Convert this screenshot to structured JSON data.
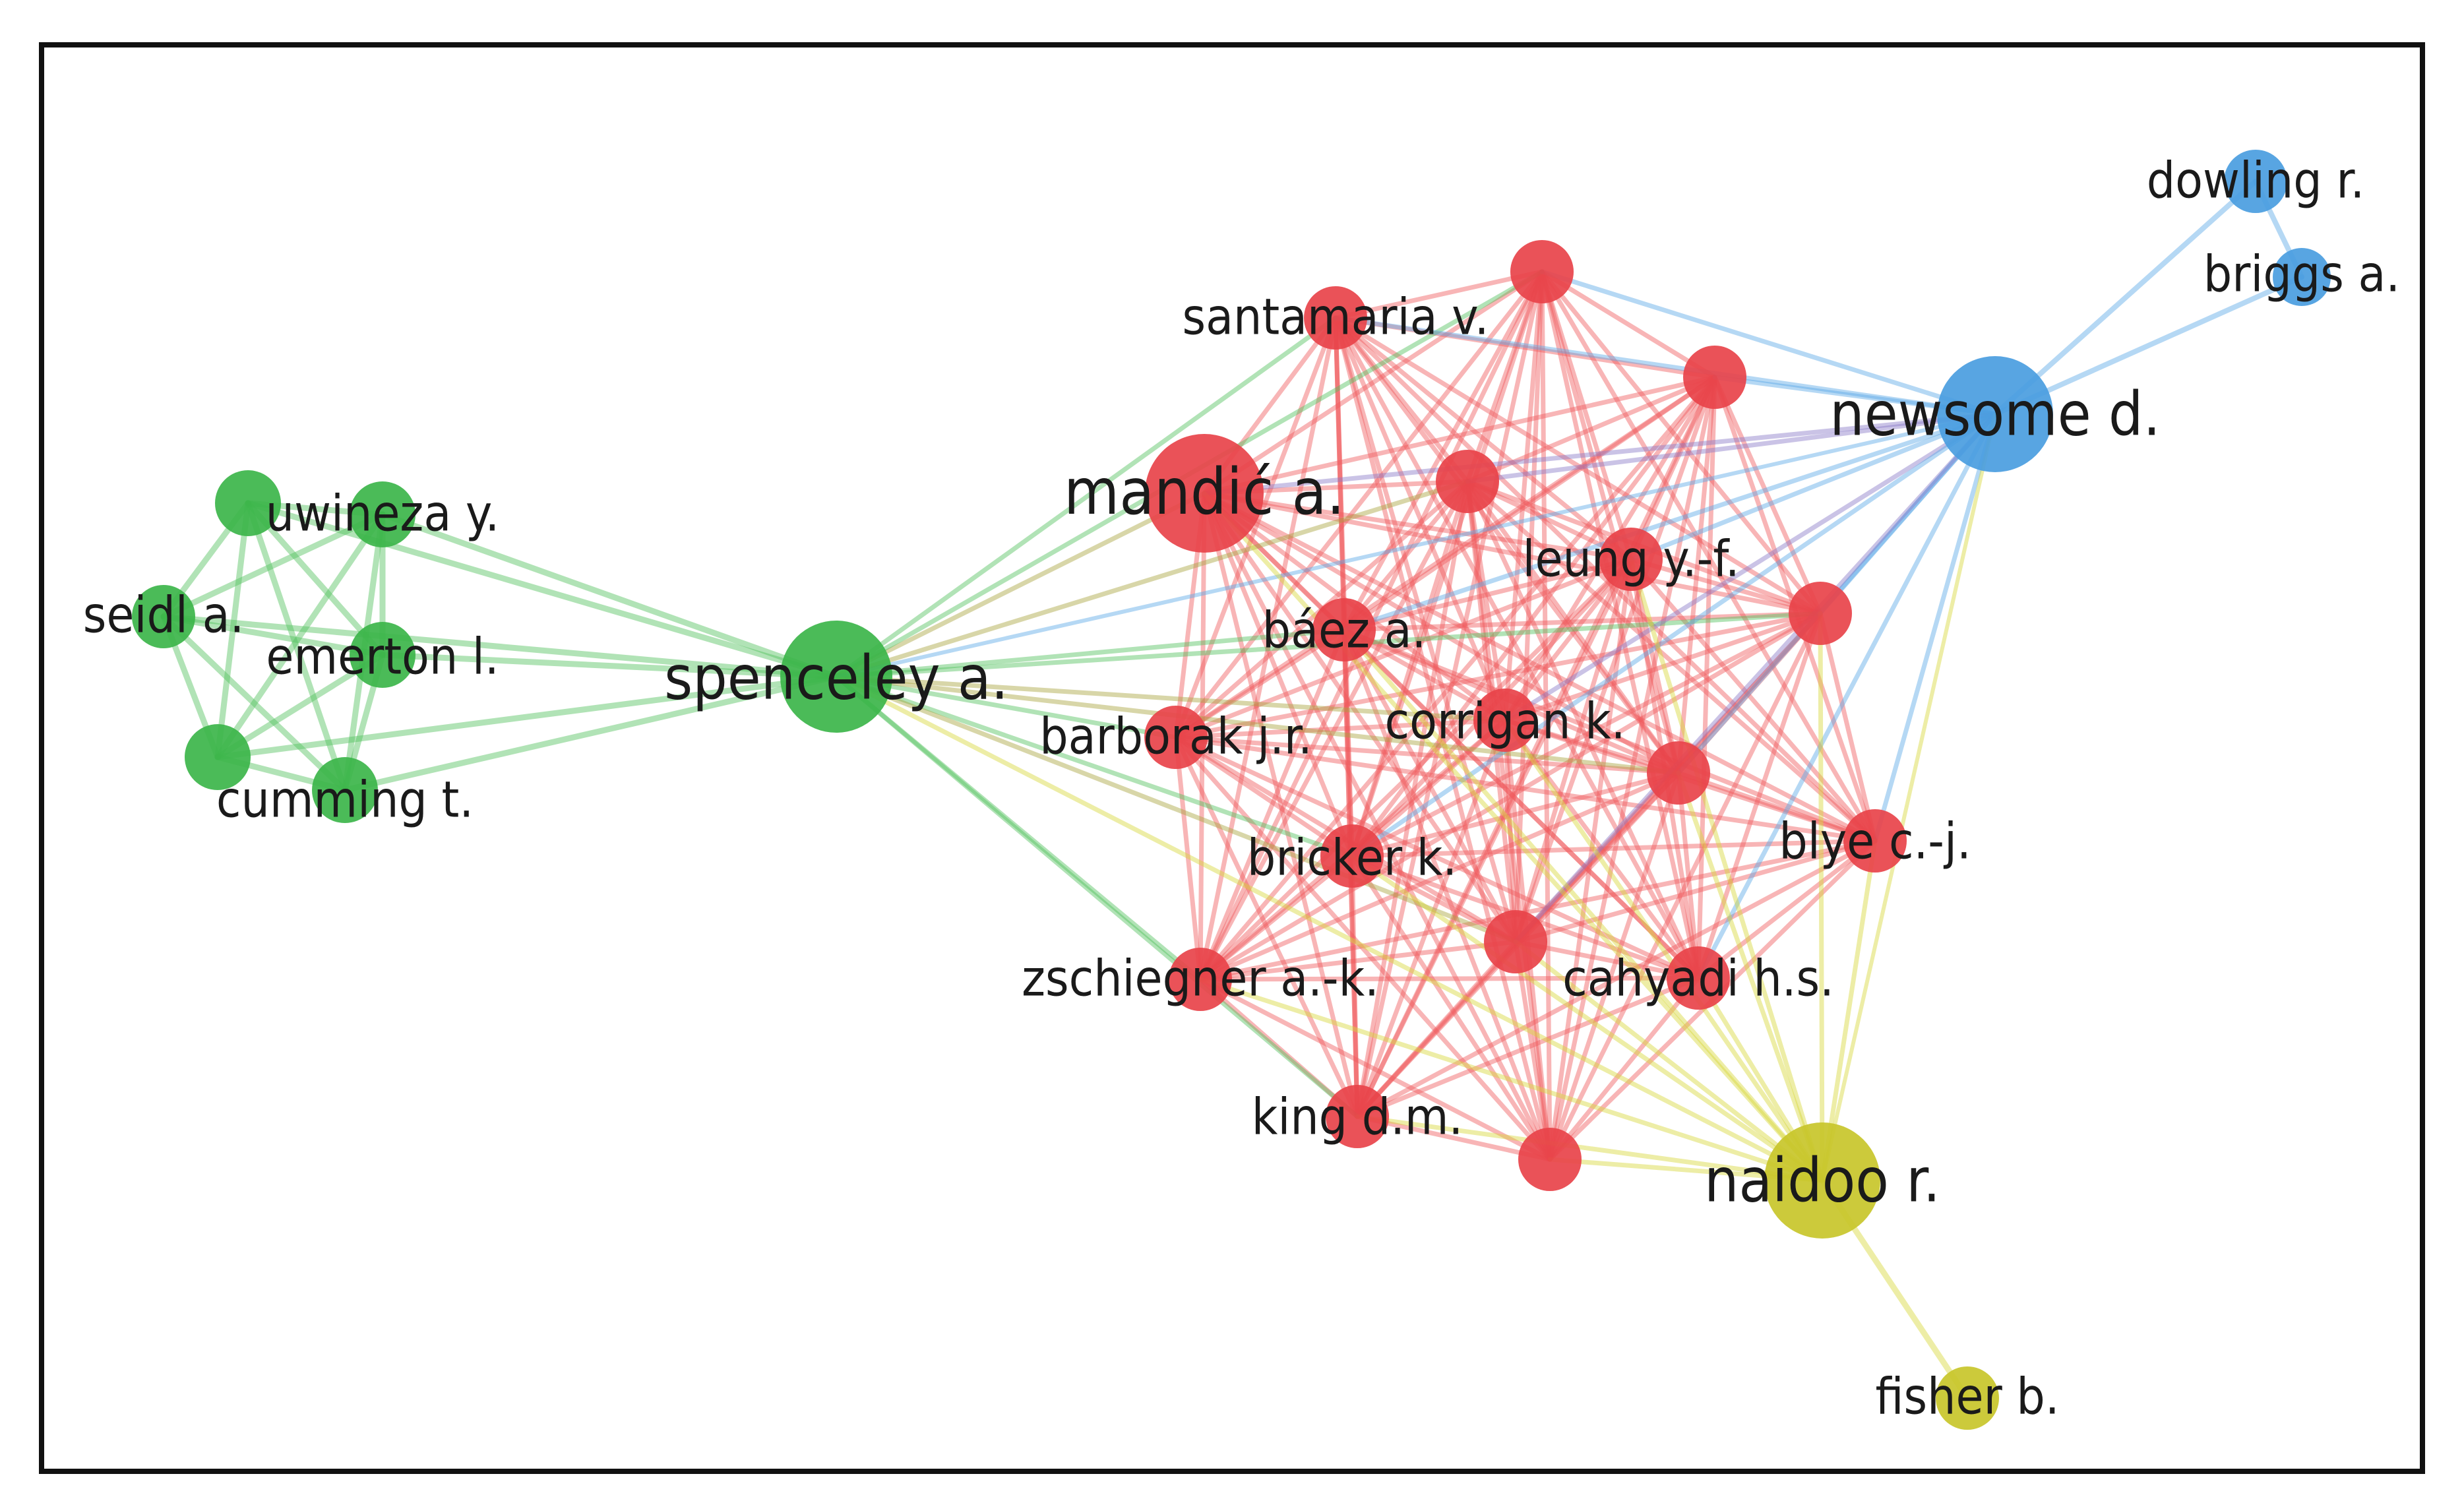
{
  "graph": {
    "type": "co-authorship network",
    "clusters": [
      {
        "id": "red",
        "color": "#e8434a"
      },
      {
        "id": "green",
        "color": "#3cb54a"
      },
      {
        "id": "blue",
        "color": "#4a9de0"
      },
      {
        "id": "yellow",
        "color": "#c8c62a"
      }
    ],
    "nodes": [
      {
        "id": "uwineza",
        "label": "uwineza y.",
        "cluster": "green"
      },
      {
        "id": "g_top",
        "label": "",
        "cluster": "green"
      },
      {
        "id": "seidl",
        "label": "seidl a.",
        "cluster": "green"
      },
      {
        "id": "emerton",
        "label": "emerton l.",
        "cluster": "green"
      },
      {
        "id": "g_bot",
        "label": "",
        "cluster": "green"
      },
      {
        "id": "cumming",
        "label": "cumming t.",
        "cluster": "green"
      },
      {
        "id": "spenceley",
        "label": "spenceley a.",
        "cluster": "green"
      },
      {
        "id": "mandic",
        "label": "mandić a.",
        "cluster": "red"
      },
      {
        "id": "santamaria",
        "label": "santamaria v.",
        "cluster": "red"
      },
      {
        "id": "r_top",
        "label": "",
        "cluster": "red"
      },
      {
        "id": "r_right",
        "label": "",
        "cluster": "red"
      },
      {
        "id": "r_mid",
        "label": "",
        "cluster": "red"
      },
      {
        "id": "leung",
        "label": "leung y.-f.",
        "cluster": "red"
      },
      {
        "id": "r_far",
        "label": "",
        "cluster": "red"
      },
      {
        "id": "baez",
        "label": "báez a.",
        "cluster": "red"
      },
      {
        "id": "corrigan",
        "label": "corrigan k.",
        "cluster": "red"
      },
      {
        "id": "barborak",
        "label": "barborak j.r.",
        "cluster": "red"
      },
      {
        "id": "r_center",
        "label": "",
        "cluster": "red"
      },
      {
        "id": "blye",
        "label": "blye c.-j.",
        "cluster": "red"
      },
      {
        "id": "bricker",
        "label": "bricker k.",
        "cluster": "red"
      },
      {
        "id": "r_low",
        "label": "",
        "cluster": "red"
      },
      {
        "id": "zschiegner",
        "label": "zschiegner a.-k.",
        "cluster": "red"
      },
      {
        "id": "cahyadi",
        "label": "cahyadi h.s.",
        "cluster": "red"
      },
      {
        "id": "king",
        "label": "king d.m.",
        "cluster": "red"
      },
      {
        "id": "r_bottom",
        "label": "",
        "cluster": "red"
      },
      {
        "id": "newsome",
        "label": "newsome d.",
        "cluster": "blue"
      },
      {
        "id": "dowling",
        "label": "dowling r.",
        "cluster": "blue"
      },
      {
        "id": "briggs",
        "label": "briggs a.",
        "cluster": "blue"
      },
      {
        "id": "naidoo",
        "label": "naidoo r.",
        "cluster": "yellow"
      },
      {
        "id": "fisher",
        "label": "fisher b.",
        "cluster": "yellow"
      }
    ]
  }
}
